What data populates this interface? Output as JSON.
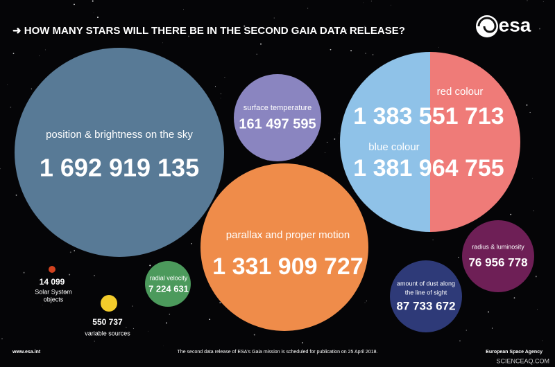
{
  "header": {
    "title": "➜ HOW MANY STARS WILL THERE BE IN THE SECOND GAIA DATA RELEASE?",
    "logo": "esa"
  },
  "bubbles": [
    {
      "label": "position & brightness on the sky",
      "value": "1 692 919 135"
    },
    {
      "label": "surface temperature",
      "value": "161 497 595"
    },
    {
      "label": "red colour",
      "value": "1 383 551 713"
    },
    {
      "label": "blue colour",
      "value": "1 381 964 755"
    },
    {
      "label": "parallax and proper motion",
      "value": "1 331 909 727"
    },
    {
      "label": "radius & luminosity",
      "value": "76 956 778"
    },
    {
      "label": "amount of dust along",
      "label2": "the line of sight",
      "value": "87 733 672"
    },
    {
      "label": "radial velocity",
      "value": "7 224 631"
    },
    {
      "value": "14 099",
      "label": "Solar System",
      "label2": "objects"
    },
    {
      "value": "550 737",
      "label": "variable sources"
    }
  ],
  "footer": {
    "website": "www.esa.int",
    "note": "The second data release of ESA's Gaia mission is scheduled for publication on 25 April 2018.",
    "agency": "European Space Agency",
    "watermark": "SCIENCEAQ.COM"
  }
}
